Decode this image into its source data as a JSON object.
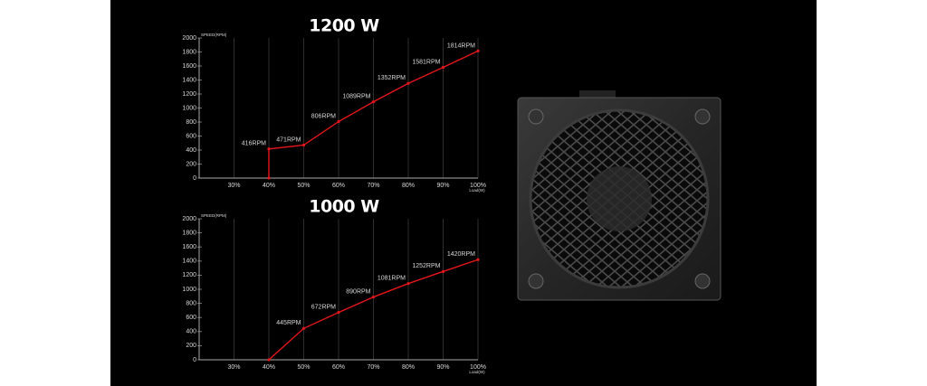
{
  "chart_data": [
    {
      "type": "line",
      "title": "1200 W",
      "y_label": "SPEED(RPM)",
      "x_label": "Load(W)",
      "x": [
        40,
        40,
        50,
        60,
        70,
        80,
        90,
        100
      ],
      "values": [
        0,
        416,
        471,
        806,
        1089,
        1352,
        1581,
        1814
      ],
      "value_labels": [
        null,
        "416RPM",
        "471RPM",
        "806RPM",
        "1089RPM",
        "1352RPM",
        "1581RPM",
        "1814RPM"
      ],
      "color": "#e3161b",
      "xlim": [
        20,
        100
      ],
      "xticks": [
        {
          "value": 30,
          "label": "30%"
        },
        {
          "value": 40,
          "label": "40%"
        },
        {
          "value": 50,
          "label": "50%"
        },
        {
          "value": 60,
          "label": "60%"
        },
        {
          "value": 70,
          "label": "70%"
        },
        {
          "value": 80,
          "label": "80%"
        },
        {
          "value": 90,
          "label": "90%"
        },
        {
          "value": 100,
          "label": "100%"
        }
      ],
      "ylim": [
        0,
        2000
      ],
      "yticks": [
        0,
        200,
        400,
        600,
        800,
        1000,
        1200,
        1400,
        1600,
        1800,
        2000
      ]
    },
    {
      "type": "line",
      "title": "1000 W",
      "y_label": "SPEED(RPM)",
      "x_label": "Load(W)",
      "x": [
        40,
        50,
        60,
        70,
        80,
        90,
        100
      ],
      "values": [
        0,
        445,
        672,
        890,
        1081,
        1252,
        1420
      ],
      "value_labels": [
        null,
        "445RPM",
        "672RPM",
        "890RPM",
        "1081RPM",
        "1252RPM",
        "1420RPM"
      ],
      "color": "#e3161b",
      "xlim": [
        20,
        100
      ],
      "xticks": [
        {
          "value": 30,
          "label": "30%"
        },
        {
          "value": 40,
          "label": "40%"
        },
        {
          "value": 50,
          "label": "50%"
        },
        {
          "value": 60,
          "label": "60%"
        },
        {
          "value": 70,
          "label": "70%"
        },
        {
          "value": 80,
          "label": "80%"
        },
        {
          "value": 90,
          "label": "90%"
        },
        {
          "value": 100,
          "label": "100%"
        }
      ],
      "ylim": [
        0,
        2000
      ],
      "yticks": [
        0,
        200,
        400,
        600,
        800,
        1000,
        1200,
        1400,
        1600,
        1800,
        2000
      ]
    }
  ]
}
